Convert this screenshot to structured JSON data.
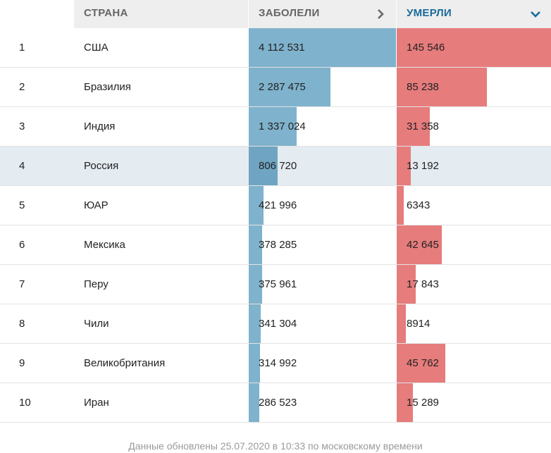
{
  "header": {
    "country_label": "СТРАНА",
    "cases_label": "ЗАБОЛЕЛИ",
    "deaths_label": "УМЕРЛИ"
  },
  "colors": {
    "cases_bar": "#7fb2cc",
    "deaths_bar": "#e67c7c",
    "active_header": "#1a6a9a",
    "highlight_row": "#e4ebf1"
  },
  "max_cases": 4112531,
  "max_deaths": 145546,
  "rows": [
    {
      "rank": "1",
      "country": "США",
      "cases": 4112531,
      "cases_text": "4 112 531",
      "deaths": 145546,
      "deaths_text": "145 546"
    },
    {
      "rank": "2",
      "country": "Бразилия",
      "cases": 2287475,
      "cases_text": "2 287 475",
      "deaths": 85238,
      "deaths_text": "85 238"
    },
    {
      "rank": "3",
      "country": "Индия",
      "cases": 1337024,
      "cases_text": "1 337 024",
      "deaths": 31358,
      "deaths_text": "31 358"
    },
    {
      "rank": "4",
      "country": "Россия",
      "cases": 806720,
      "cases_text": "806 720",
      "deaths": 13192,
      "deaths_text": "13 192",
      "highlight": true
    },
    {
      "rank": "5",
      "country": "ЮАР",
      "cases": 421996,
      "cases_text": "421 996",
      "deaths": 6343,
      "deaths_text": "6343"
    },
    {
      "rank": "6",
      "country": "Мексика",
      "cases": 378285,
      "cases_text": "378 285",
      "deaths": 42645,
      "deaths_text": "42 645"
    },
    {
      "rank": "7",
      "country": "Перу",
      "cases": 375961,
      "cases_text": "375 961",
      "deaths": 17843,
      "deaths_text": "17 843"
    },
    {
      "rank": "8",
      "country": "Чили",
      "cases": 341304,
      "cases_text": "341 304",
      "deaths": 8914,
      "deaths_text": "8914"
    },
    {
      "rank": "9",
      "country": "Великобритания",
      "cases": 314992,
      "cases_text": "314 992",
      "deaths": 45762,
      "deaths_text": "45 762"
    },
    {
      "rank": "10",
      "country": "Иран",
      "cases": 286523,
      "cases_text": "286 523",
      "deaths": 15289,
      "deaths_text": "15 289"
    }
  ],
  "footer": {
    "updated_text": "Данные обновлены 25.07.2020 в 10:33 по московскому времени"
  },
  "icons": {
    "cases_sort": "chevron-right-icon",
    "deaths_sort": "chevron-down-icon"
  }
}
